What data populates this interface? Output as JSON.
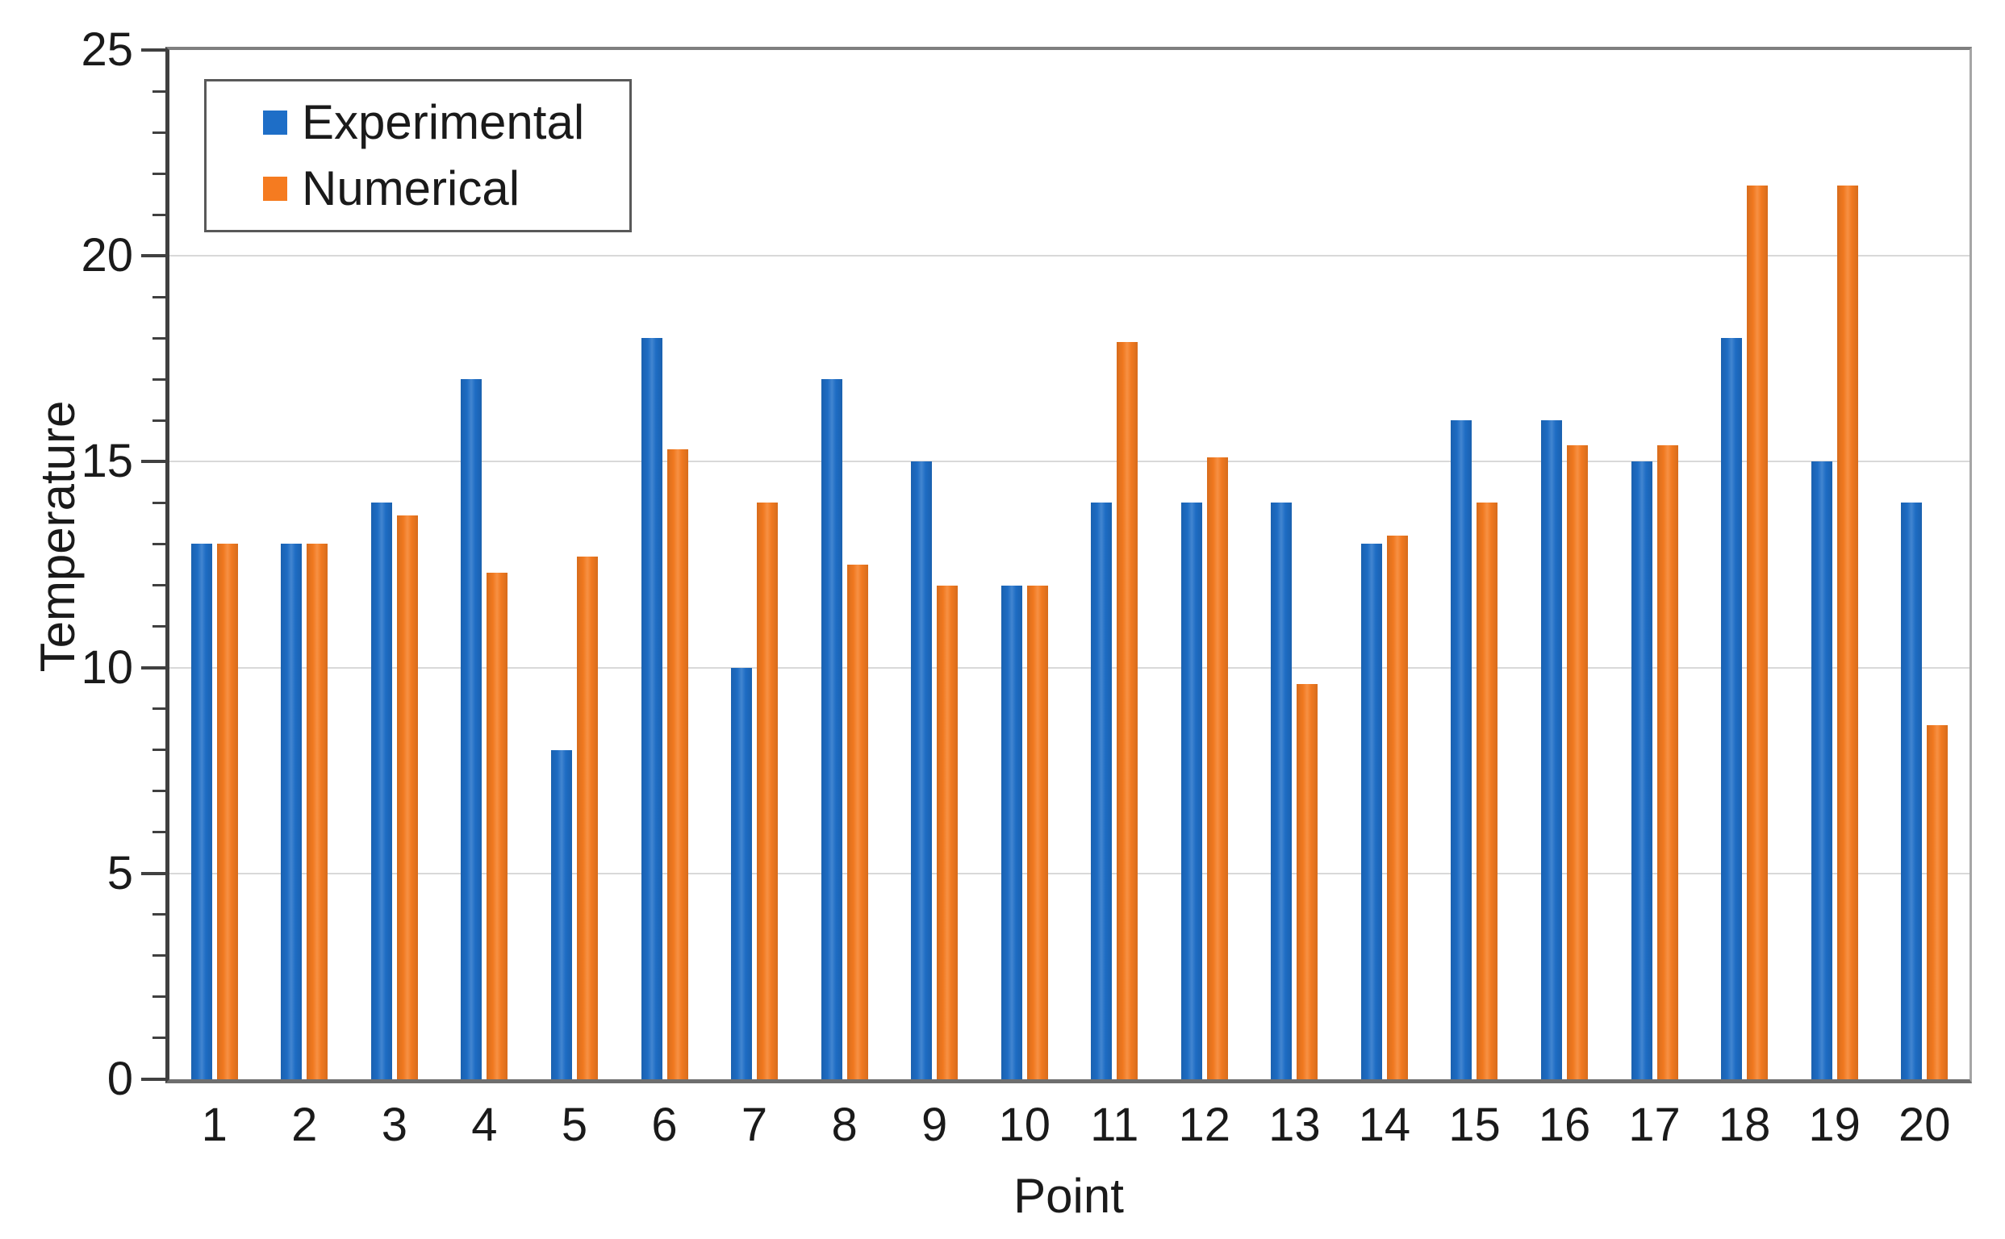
{
  "chart_data": {
    "type": "bar",
    "title": "",
    "xlabel": "Point",
    "ylabel": "Temperature",
    "ylim": [
      0,
      25
    ],
    "y_major_tick_step": 5,
    "y_minor_tick_step": 1,
    "y_tick_labels": [
      "0",
      "5",
      "10",
      "15",
      "20",
      "25"
    ],
    "grid": "horizontal-major",
    "legend_position": "top-left-inside",
    "categories": [
      "1",
      "2",
      "3",
      "4",
      "5",
      "6",
      "7",
      "8",
      "9",
      "10",
      "11",
      "12",
      "13",
      "14",
      "15",
      "16",
      "17",
      "18",
      "19",
      "20"
    ],
    "series": [
      {
        "name": "Experimental",
        "color": "#1E6EC7",
        "values": [
          13,
          13,
          14,
          17,
          8,
          18,
          10,
          17,
          15,
          12,
          14,
          14,
          14,
          13,
          16,
          16,
          15,
          18,
          15,
          14
        ]
      },
      {
        "name": "Numerical",
        "color": "#F57B20",
        "values": [
          13,
          13,
          13.7,
          12.3,
          12.7,
          15.3,
          14,
          12.5,
          12,
          12,
          17.9,
          15.1,
          9.6,
          13.2,
          14,
          15.4,
          15.4,
          21.7,
          21.7,
          8.6
        ]
      }
    ]
  }
}
